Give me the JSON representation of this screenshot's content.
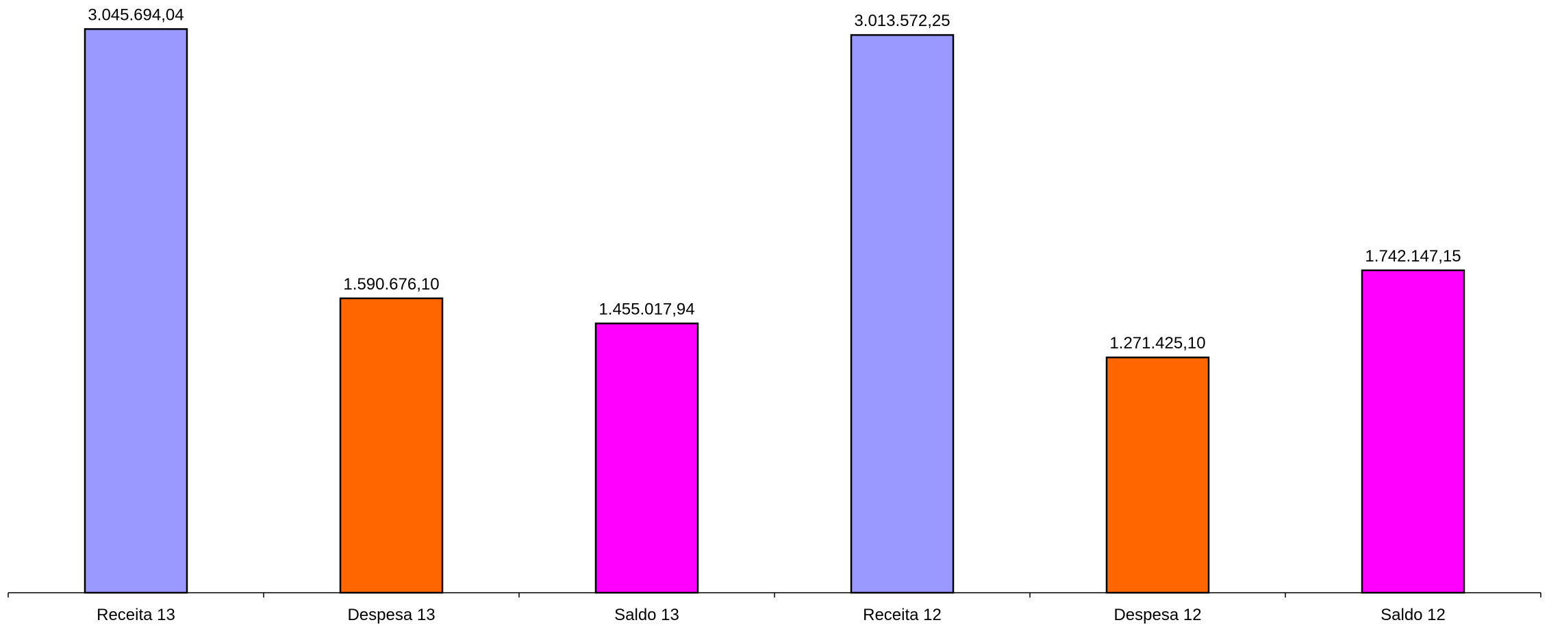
{
  "chart_data": {
    "type": "bar",
    "categories": [
      "Receita 13",
      "Despesa 13",
      "Saldo 13",
      "Receita 12",
      "Despesa 12",
      "Saldo 12"
    ],
    "values": [
      3045694.04,
      1590676.1,
      1455017.94,
      3013572.25,
      1271425.1,
      1742147.15
    ],
    "data_labels": [
      "3.045.694,04",
      "1.590.676,10",
      "1.455.017,94",
      "3.013.572,25",
      "1.271.425,10",
      "1.742.147,15"
    ],
    "colors": [
      "#9999FF",
      "#FF6600",
      "#FF00FF",
      "#9999FF",
      "#FF6600",
      "#FF00FF"
    ],
    "title": "",
    "xlabel": "",
    "ylabel": "",
    "ylim": [
      0,
      3100000
    ],
    "grid": false,
    "legend": "none"
  }
}
